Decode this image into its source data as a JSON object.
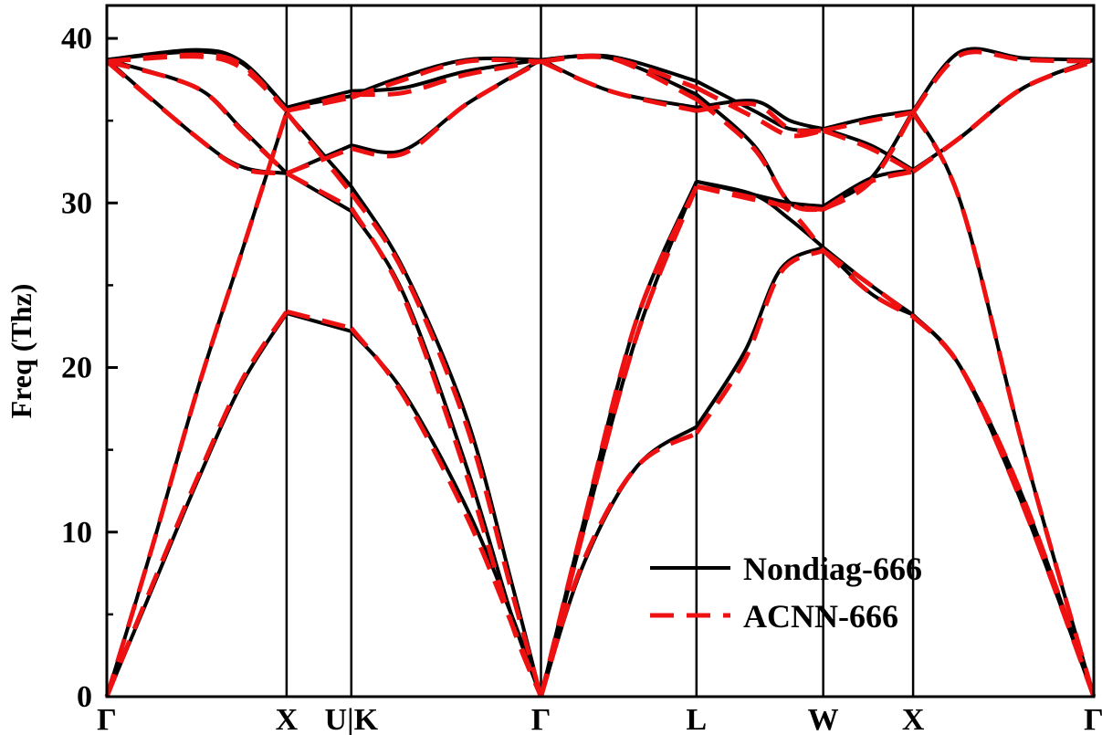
{
  "chart_data": {
    "type": "line",
    "title": "",
    "xlabel": "",
    "ylabel": "Freq (Thz)",
    "ylim": [
      0,
      42
    ],
    "yticks": [
      0,
      10,
      20,
      30,
      40
    ],
    "xlim": [
      0,
      11.94
    ],
    "high_symmetry_points": [
      {
        "label": "Γ",
        "x": 0
      },
      {
        "label": "X",
        "x": 2.0
      },
      {
        "label": "U|K",
        "x": 2.72
      },
      {
        "label": "Γ",
        "x": 4.83
      },
      {
        "label": "L",
        "x": 6.56
      },
      {
        "label": "W",
        "x": 7.97
      },
      {
        "label": "X",
        "x": 8.97
      },
      {
        "label": "Γ",
        "x": 10.98
      }
    ],
    "legend": {
      "position": "lower-right",
      "entries": [
        {
          "label": "Nondiag-666",
          "color": "#000000",
          "style": "solid"
        },
        {
          "label": "ACNN-666",
          "color": "#ee1111",
          "style": "dashed"
        }
      ]
    },
    "series": [
      {
        "name": "Nondiag-666",
        "color": "#000000",
        "style": "solid",
        "bands": [
          [
            [
              0,
              0
            ],
            [
              0.5,
              6.5
            ],
            [
              1.0,
              13.0
            ],
            [
              1.5,
              19.0
            ],
            [
              2.0,
              23.3
            ],
            [
              2.72,
              22.2
            ],
            [
              3.3,
              18.5
            ],
            [
              4.0,
              11.5
            ],
            [
              4.5,
              5.0
            ],
            [
              4.83,
              0
            ],
            [
              5.3,
              8.0
            ],
            [
              5.9,
              14.0
            ],
            [
              6.56,
              16.4
            ],
            [
              7.1,
              21.0
            ],
            [
              7.5,
              26.0
            ],
            [
              7.97,
              27.3
            ],
            [
              8.5,
              24.5
            ],
            [
              8.97,
              23.2
            ],
            [
              9.5,
              20.0
            ],
            [
              10.2,
              12.0
            ],
            [
              10.98,
              0
            ]
          ],
          [
            [
              0,
              0
            ],
            [
              0.5,
              9.0
            ],
            [
              1.0,
              18.5
            ],
            [
              1.5,
              27.0
            ],
            [
              2.0,
              35.5
            ],
            [
              2.72,
              31.0
            ],
            [
              3.3,
              26.0
            ],
            [
              4.0,
              17.0
            ],
            [
              4.5,
              7.0
            ],
            [
              4.83,
              0
            ],
            [
              5.3,
              10.0
            ],
            [
              5.9,
              22.0
            ],
            [
              6.56,
              31.3
            ],
            [
              7.2,
              30.5
            ],
            [
              7.6,
              29.0
            ],
            [
              7.97,
              27.3
            ],
            [
              8.5,
              25.0
            ],
            [
              8.97,
              23.2
            ],
            [
              9.5,
              20.0
            ],
            [
              10.2,
              11.5
            ],
            [
              10.98,
              0
            ]
          ],
          [
            [
              0,
              38.7
            ],
            [
              1.0,
              34.0
            ],
            [
              1.5,
              32.2
            ],
            [
              2.0,
              31.8
            ],
            [
              2.72,
              29.5
            ],
            [
              3.3,
              24.5
            ],
            [
              4.0,
              14.0
            ],
            [
              4.5,
              5.0
            ],
            [
              4.83,
              0
            ],
            [
              5.3,
              10.5
            ],
            [
              5.9,
              23.0
            ],
            [
              6.56,
              31.3
            ],
            [
              7.2,
              30.5
            ],
            [
              7.6,
              30.0
            ],
            [
              7.97,
              29.8
            ],
            [
              8.5,
              31.5
            ],
            [
              8.97,
              32.0
            ],
            [
              9.5,
              34.0
            ],
            [
              10.2,
              37.0
            ],
            [
              10.98,
              38.7
            ]
          ],
          [
            [
              0,
              38.7
            ],
            [
              1.0,
              37.0
            ],
            [
              1.5,
              34.5
            ],
            [
              2.0,
              31.8
            ],
            [
              2.72,
              33.5
            ],
            [
              3.3,
              33.2
            ],
            [
              4.0,
              36.0
            ],
            [
              4.83,
              38.7
            ],
            [
              5.6,
              36.8
            ],
            [
              6.56,
              35.8
            ],
            [
              7.2,
              36.2
            ],
            [
              7.6,
              35.0
            ],
            [
              7.97,
              34.5
            ],
            [
              8.5,
              35.2
            ],
            [
              8.97,
              35.6
            ],
            [
              9.5,
              30.0
            ],
            [
              10.2,
              15.0
            ],
            [
              10.98,
              0
            ]
          ],
          [
            [
              0,
              38.7
            ],
            [
              1.0,
              39.2
            ],
            [
              1.5,
              38.5
            ],
            [
              2.0,
              35.8
            ],
            [
              2.72,
              36.8
            ],
            [
              3.3,
              37.0
            ],
            [
              4.0,
              38.0
            ],
            [
              4.83,
              38.7
            ],
            [
              5.6,
              38.9
            ],
            [
              6.56,
              37.4
            ],
            [
              7.2,
              35.6
            ],
            [
              7.6,
              34.5
            ],
            [
              7.97,
              34.5
            ],
            [
              8.5,
              33.5
            ],
            [
              8.97,
              32.0
            ],
            [
              9.5,
              34.0
            ],
            [
              10.2,
              37.0
            ],
            [
              10.98,
              38.7
            ]
          ],
          [
            [
              0,
              38.7
            ],
            [
              1.0,
              39.3
            ],
            [
              1.5,
              38.6
            ],
            [
              2.0,
              35.8
            ],
            [
              2.72,
              36.5
            ],
            [
              3.2,
              37.5
            ],
            [
              4.0,
              38.7
            ],
            [
              4.83,
              38.7
            ],
            [
              5.6,
              38.8
            ],
            [
              6.56,
              36.6
            ],
            [
              7.2,
              33.5
            ],
            [
              7.6,
              30.0
            ],
            [
              7.97,
              29.8
            ],
            [
              8.5,
              31.5
            ],
            [
              8.97,
              35.6
            ],
            [
              9.5,
              39.2
            ],
            [
              10.2,
              38.8
            ],
            [
              10.98,
              38.7
            ]
          ]
        ]
      },
      {
        "name": "ACNN-666",
        "color": "#ee1111",
        "style": "dashed",
        "bands": [
          [
            [
              0,
              0
            ],
            [
              0.5,
              6.7
            ],
            [
              1.0,
              13.2
            ],
            [
              1.5,
              19.2
            ],
            [
              2.0,
              23.4
            ],
            [
              2.72,
              22.4
            ],
            [
              3.3,
              18.3
            ],
            [
              4.0,
              11.0
            ],
            [
              4.5,
              4.5
            ],
            [
              4.83,
              0
            ],
            [
              5.3,
              8.2
            ],
            [
              5.9,
              14.0
            ],
            [
              6.56,
              16.0
            ],
            [
              7.1,
              20.5
            ],
            [
              7.5,
              25.8
            ],
            [
              7.97,
              27.1
            ],
            [
              8.5,
              24.5
            ],
            [
              8.97,
              23.1
            ],
            [
              9.5,
              20.0
            ],
            [
              10.2,
              12.0
            ],
            [
              10.98,
              0
            ]
          ],
          [
            [
              0,
              0
            ],
            [
              0.5,
              9.0
            ],
            [
              1.0,
              18.5
            ],
            [
              1.5,
              27.0
            ],
            [
              2.0,
              35.5
            ],
            [
              2.72,
              30.6
            ],
            [
              3.3,
              25.8
            ],
            [
              4.0,
              16.5
            ],
            [
              4.5,
              6.5
            ],
            [
              4.83,
              0
            ],
            [
              5.3,
              10.0
            ],
            [
              5.9,
              22.0
            ],
            [
              6.56,
              31.0
            ],
            [
              7.2,
              30.3
            ],
            [
              7.6,
              29.5
            ],
            [
              7.97,
              27.1
            ],
            [
              8.5,
              25.0
            ],
            [
              8.97,
              23.1
            ],
            [
              9.5,
              20.0
            ],
            [
              10.2,
              11.5
            ],
            [
              10.98,
              0
            ]
          ],
          [
            [
              0,
              38.6
            ],
            [
              1.0,
              34.0
            ],
            [
              1.5,
              32.1
            ],
            [
              2.0,
              31.8
            ],
            [
              2.72,
              29.7
            ],
            [
              3.3,
              24.3
            ],
            [
              4.0,
              13.5
            ],
            [
              4.5,
              4.5
            ],
            [
              4.83,
              0
            ],
            [
              5.3,
              10.5
            ],
            [
              5.9,
              23.0
            ],
            [
              6.56,
              31.0
            ],
            [
              7.2,
              30.2
            ],
            [
              7.6,
              29.8
            ],
            [
              7.97,
              29.6
            ],
            [
              8.5,
              31.3
            ],
            [
              8.97,
              31.9
            ],
            [
              9.5,
              34.0
            ],
            [
              10.2,
              37.0
            ],
            [
              10.98,
              38.6
            ]
          ],
          [
            [
              0,
              38.6
            ],
            [
              1.0,
              37.0
            ],
            [
              1.5,
              34.4
            ],
            [
              2.0,
              31.8
            ],
            [
              2.72,
              33.3
            ],
            [
              3.3,
              33.0
            ],
            [
              4.0,
              36.0
            ],
            [
              4.83,
              38.6
            ],
            [
              5.6,
              36.8
            ],
            [
              6.56,
              35.6
            ],
            [
              7.2,
              36.0
            ],
            [
              7.6,
              34.5
            ],
            [
              7.97,
              34.4
            ],
            [
              8.5,
              35.0
            ],
            [
              8.97,
              35.5
            ],
            [
              9.5,
              30.0
            ],
            [
              10.2,
              15.0
            ],
            [
              10.98,
              0
            ]
          ],
          [
            [
              0,
              38.6
            ],
            [
              1.0,
              38.9
            ],
            [
              1.5,
              38.2
            ],
            [
              2.0,
              35.6
            ],
            [
              2.72,
              36.6
            ],
            [
              3.3,
              36.7
            ],
            [
              4.0,
              37.8
            ],
            [
              4.83,
              38.6
            ],
            [
              5.6,
              38.8
            ],
            [
              6.56,
              37.0
            ],
            [
              7.2,
              35.2
            ],
            [
              7.6,
              34.1
            ],
            [
              7.97,
              34.4
            ],
            [
              8.5,
              33.3
            ],
            [
              8.97,
              31.9
            ],
            [
              9.5,
              34.0
            ],
            [
              10.2,
              37.0
            ],
            [
              10.98,
              38.6
            ]
          ],
          [
            [
              0,
              38.6
            ],
            [
              1.0,
              39.0
            ],
            [
              1.5,
              38.4
            ],
            [
              2.0,
              35.6
            ],
            [
              2.72,
              36.4
            ],
            [
              3.2,
              37.3
            ],
            [
              4.0,
              38.6
            ],
            [
              4.83,
              38.6
            ],
            [
              5.6,
              38.8
            ],
            [
              6.56,
              36.3
            ],
            [
              7.2,
              33.3
            ],
            [
              7.6,
              30.0
            ],
            [
              7.97,
              29.6
            ],
            [
              8.5,
              31.3
            ],
            [
              8.97,
              35.5
            ],
            [
              9.5,
              39.0
            ],
            [
              10.2,
              38.7
            ],
            [
              10.98,
              38.6
            ]
          ]
        ]
      }
    ]
  }
}
